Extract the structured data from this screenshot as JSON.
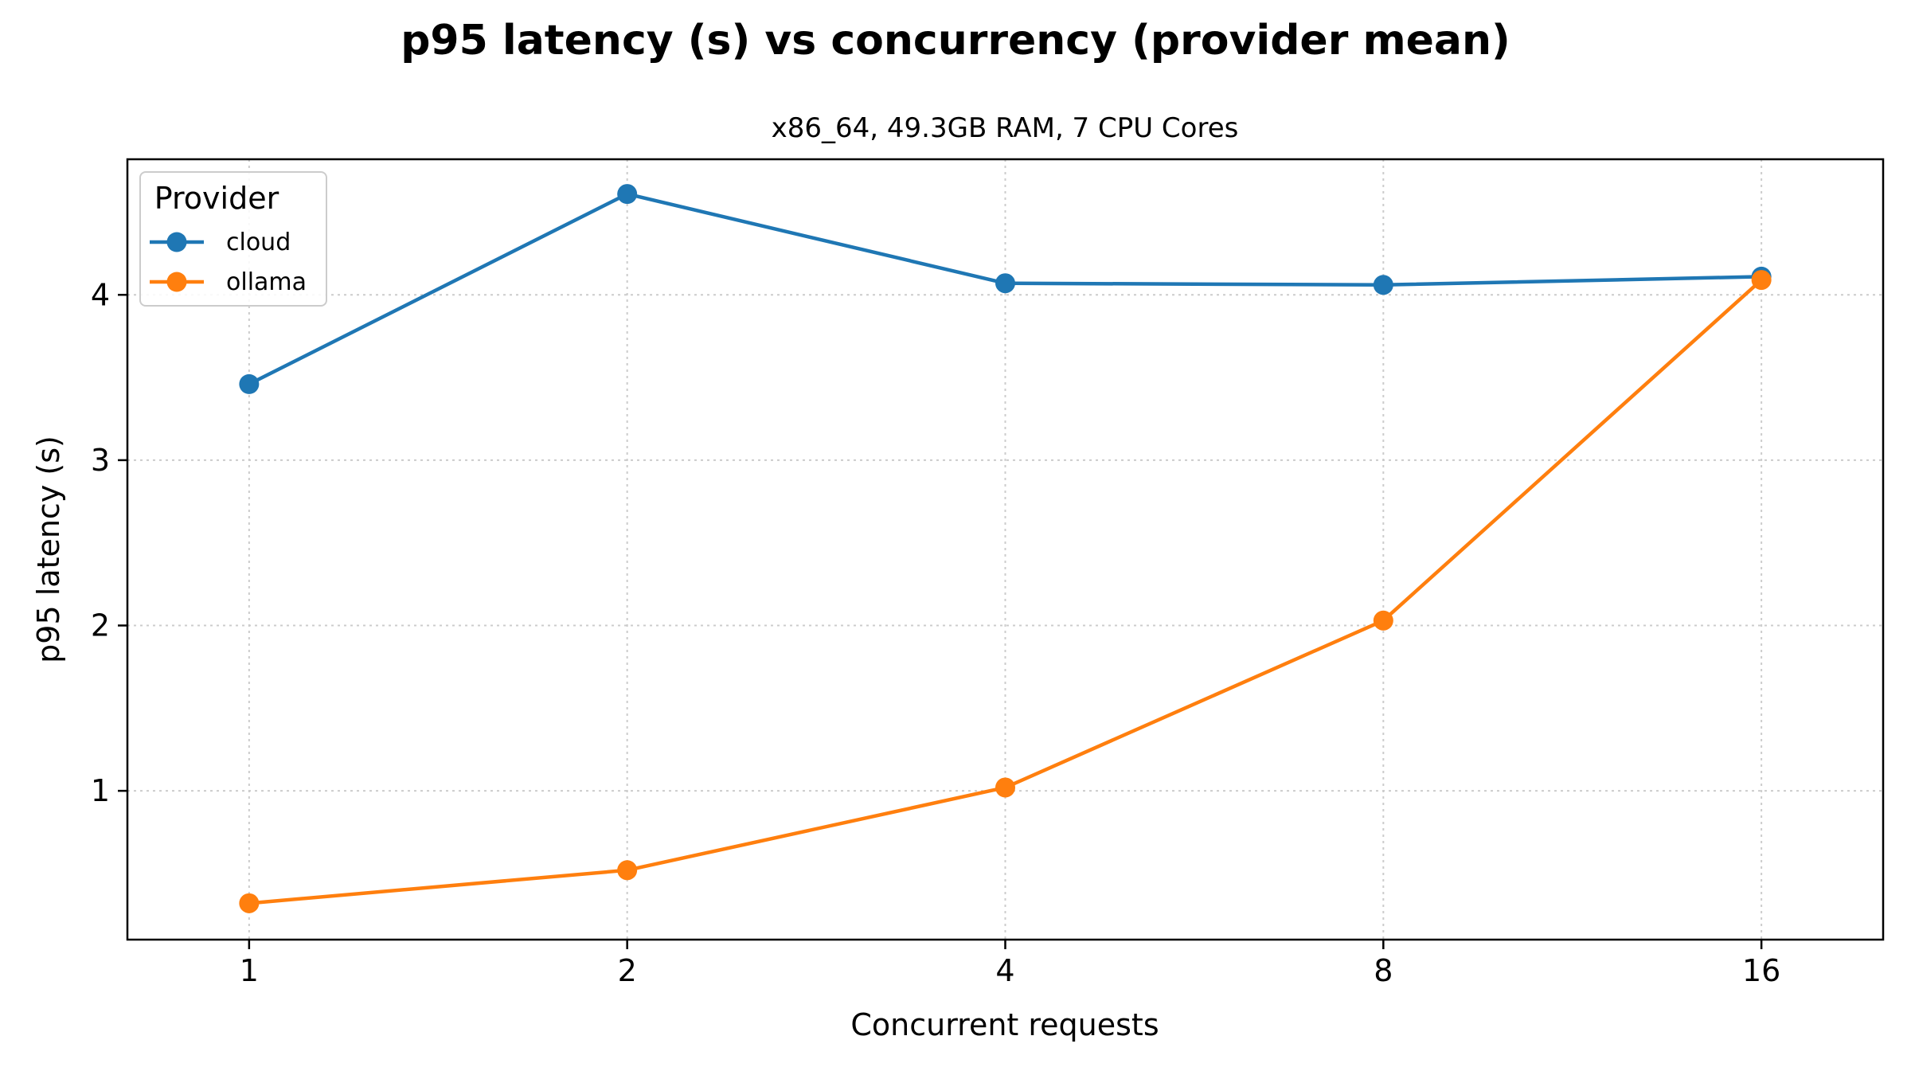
{
  "chart_data": {
    "type": "line",
    "title": "p95 latency (s) vs concurrency (provider mean)",
    "subtitle": "x86_64, 49.3GB RAM, 7 CPU Cores",
    "xlabel": "Concurrent requests",
    "ylabel": "p95 latency (s)",
    "x": [
      1,
      2,
      4,
      8,
      16
    ],
    "x_tick_labels": [
      "1",
      "2",
      "4",
      "8",
      "16"
    ],
    "x_scale": "log2",
    "xlim": [
      0.8,
      20
    ],
    "yticks": [
      1,
      2,
      3,
      4
    ],
    "y_tick_labels": [
      "1",
      "2",
      "3",
      "4"
    ],
    "ylim": [
      0.1,
      4.82
    ],
    "grid": true,
    "legend": {
      "title": "Provider",
      "placement": "top-left"
    },
    "series": [
      {
        "name": "cloud",
        "color": "#1f77b4",
        "values": [
          3.46,
          4.61,
          4.07,
          4.06,
          4.11
        ]
      },
      {
        "name": "ollama",
        "color": "#ff7f0e",
        "values": [
          0.32,
          0.52,
          1.02,
          2.03,
          4.09
        ]
      }
    ]
  }
}
